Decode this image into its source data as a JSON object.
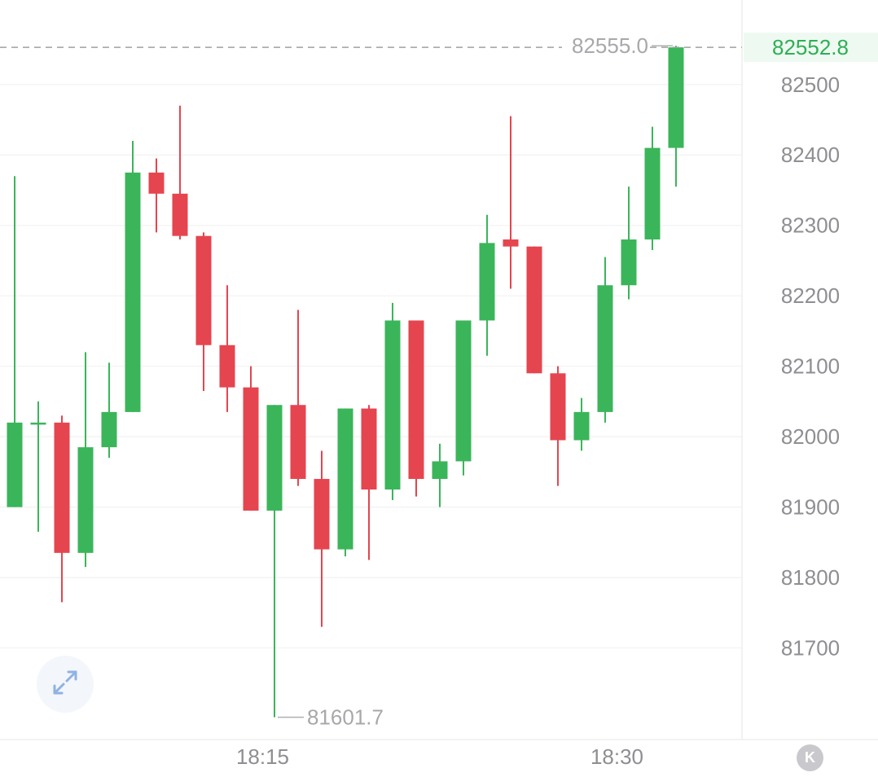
{
  "chart_data": {
    "type": "candlestick",
    "y_axis": {
      "ticks": [
        81700,
        81800,
        81900,
        82000,
        82100,
        82200,
        82300,
        82400,
        82500
      ],
      "range": [
        81570,
        82620
      ],
      "position": "right"
    },
    "x_axis": {
      "ticks": [
        {
          "label": "18:15",
          "index": 10.5
        },
        {
          "label": "18:30",
          "index": 25.5
        }
      ]
    },
    "candles": [
      {
        "o": 81900,
        "h": 82370,
        "l": 81900,
        "c": 82020
      },
      {
        "o": 82020,
        "h": 82050,
        "l": 81865,
        "c": 82020
      },
      {
        "o": 82020,
        "h": 82030,
        "l": 81765,
        "c": 81835
      },
      {
        "o": 81835,
        "h": 82120,
        "l": 81815,
        "c": 81985
      },
      {
        "o": 81985,
        "h": 82105,
        "l": 81970,
        "c": 82035
      },
      {
        "o": 82035,
        "h": 82420,
        "l": 82035,
        "c": 82375
      },
      {
        "o": 82375,
        "h": 82395,
        "l": 82290,
        "c": 82345
      },
      {
        "o": 82345,
        "h": 82470,
        "l": 82280,
        "c": 82285
      },
      {
        "o": 82285,
        "h": 82290,
        "l": 82065,
        "c": 82130
      },
      {
        "o": 82130,
        "h": 82215,
        "l": 82035,
        "c": 82070
      },
      {
        "o": 82070,
        "h": 82100,
        "l": 81895,
        "c": 81895
      },
      {
        "o": 81895,
        "h": 82045,
        "l": 81601.7,
        "c": 82045
      },
      {
        "o": 82045,
        "h": 82180,
        "l": 81930,
        "c": 81940
      },
      {
        "o": 81940,
        "h": 81980,
        "l": 81730,
        "c": 81840
      },
      {
        "o": 81840,
        "h": 82040,
        "l": 81830,
        "c": 82040
      },
      {
        "o": 82040,
        "h": 82045,
        "l": 81825,
        "c": 81925
      },
      {
        "o": 81925,
        "h": 82190,
        "l": 81910,
        "c": 82165
      },
      {
        "o": 82165,
        "h": 82165,
        "l": 81915,
        "c": 81940
      },
      {
        "o": 81940,
        "h": 81990,
        "l": 81900,
        "c": 81965
      },
      {
        "o": 81965,
        "h": 82165,
        "l": 81945,
        "c": 82165
      },
      {
        "o": 82165,
        "h": 82315,
        "l": 82115,
        "c": 82275
      },
      {
        "o": 82280,
        "h": 82455,
        "l": 82210,
        "c": 82270
      },
      {
        "o": 82270,
        "h": 82270,
        "l": 82090,
        "c": 82090
      },
      {
        "o": 82090,
        "h": 82100,
        "l": 81930,
        "c": 81995
      },
      {
        "o": 81995,
        "h": 82055,
        "l": 81980,
        "c": 82035
      },
      {
        "o": 82035,
        "h": 82255,
        "l": 82020,
        "c": 82215
      },
      {
        "o": 82215,
        "h": 82355,
        "l": 82195,
        "c": 82280
      },
      {
        "o": 82280,
        "h": 82440,
        "l": 82265,
        "c": 82410
      },
      {
        "o": 82410,
        "h": 82555,
        "l": 82355,
        "c": 82552.8
      }
    ],
    "annotations": {
      "high_label": "82555.0",
      "high_value": 82555.0,
      "low_label": "81601.7",
      "low_value": 81601.7
    },
    "current_price": {
      "label": "82552.8",
      "value": 82552.8
    },
    "colors": {
      "up": "#3bb55a",
      "down": "#e5454f",
      "price_text": "#2fae55",
      "price_bg": "#eefaf1"
    }
  },
  "controls": {
    "expand_icon": "expand-arrows-icon",
    "k_button_label": "K"
  }
}
